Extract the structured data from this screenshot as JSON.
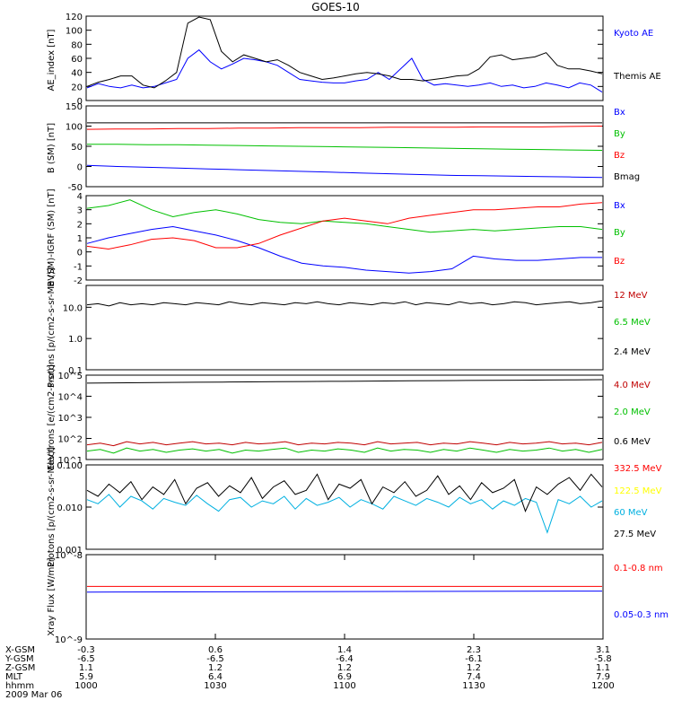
{
  "title": "GOES-10",
  "chart_data": [
    {
      "type": "line",
      "ylabel": "AE_index [nT]",
      "yticks": [
        "0",
        "20",
        "40",
        "60",
        "80",
        "100",
        "120"
      ],
      "ylim": [
        0,
        120
      ],
      "series": [
        {
          "name": "Kyoto AE",
          "color": "#0000ff",
          "values": [
            18,
            24,
            20,
            18,
            22,
            18,
            20,
            25,
            30,
            60,
            72,
            55,
            45,
            52,
            60,
            58,
            55,
            50,
            40,
            30,
            28,
            26,
            25,
            25,
            28,
            30,
            40,
            30,
            45,
            60,
            30,
            22,
            24,
            22,
            20,
            22,
            25,
            20,
            22,
            18,
            20,
            25,
            22,
            18,
            25,
            22,
            12
          ]
        },
        {
          "name": "Themis AE",
          "color": "#000000",
          "values": [
            20,
            26,
            30,
            35,
            35,
            22,
            18,
            28,
            40,
            110,
            120,
            115,
            70,
            55,
            65,
            60,
            55,
            58,
            50,
            40,
            35,
            30,
            32,
            35,
            38,
            40,
            38,
            35,
            30,
            30,
            28,
            30,
            32,
            35,
            36,
            45,
            62,
            65,
            58,
            60,
            62,
            68,
            50,
            45,
            45,
            42,
            38
          ]
        }
      ]
    },
    {
      "type": "line",
      "ylabel": "B (SM) [nT]",
      "yticks": [
        "-50",
        "0",
        "50",
        "100",
        "150"
      ],
      "ylim": [
        -50,
        150
      ],
      "series": [
        {
          "name": "Bx",
          "color": "#0000ff",
          "values": [
            3,
            0,
            -2,
            -4,
            -6,
            -8,
            -10,
            -12,
            -14,
            -16,
            -18,
            -20,
            -22,
            -23,
            -24,
            -25,
            -26,
            -27
          ]
        },
        {
          "name": "By",
          "color": "#00c000",
          "values": [
            55,
            55,
            54,
            54,
            53,
            52,
            51,
            50,
            49,
            48,
            47,
            46,
            45,
            44,
            43,
            42,
            41,
            40
          ]
        },
        {
          "name": "Bz",
          "color": "#ff0000",
          "values": [
            92,
            93,
            93,
            94,
            94,
            95,
            95,
            96,
            96,
            96,
            97,
            97,
            97,
            98,
            98,
            98,
            99,
            100
          ]
        },
        {
          "name": "Bmag",
          "color": "#000000",
          "values": [
            108,
            108,
            108,
            108,
            108,
            108,
            108,
            108,
            108,
            108,
            108,
            108,
            108,
            108,
            108,
            108,
            108,
            108
          ]
        }
      ]
    },
    {
      "type": "line",
      "ylabel": "B (SM)-IGRF (SM) [nT]",
      "yticks": [
        "-2",
        "-1",
        "0",
        "1",
        "2",
        "3",
        "4"
      ],
      "ylim": [
        -2,
        4
      ],
      "series": [
        {
          "name": "Bx",
          "color": "#0000ff",
          "values": [
            0.6,
            1.0,
            1.3,
            1.6,
            1.8,
            1.5,
            1.2,
            0.8,
            0.3,
            -0.3,
            -0.8,
            -1.0,
            -1.1,
            -1.3,
            -1.4,
            -1.5,
            -1.4,
            -1.2,
            -0.3,
            -0.5,
            -0.6,
            -0.6,
            -0.5,
            -0.4,
            -0.4
          ]
        },
        {
          "name": "By",
          "color": "#00c000",
          "values": [
            3.1,
            3.3,
            3.7,
            3.0,
            2.5,
            2.8,
            3.0,
            2.7,
            2.3,
            2.1,
            2.0,
            2.2,
            2.1,
            2.0,
            1.8,
            1.6,
            1.4,
            1.5,
            1.6,
            1.5,
            1.6,
            1.7,
            1.8,
            1.8,
            1.6
          ]
        },
        {
          "name": "Bz",
          "color": "#ff0000",
          "values": [
            0.4,
            0.2,
            0.5,
            0.9,
            1.0,
            0.8,
            0.3,
            0.3,
            0.6,
            1.2,
            1.7,
            2.2,
            2.4,
            2.2,
            2.0,
            2.4,
            2.6,
            2.8,
            3.0,
            3.0,
            3.1,
            3.2,
            3.2,
            3.4,
            3.5
          ]
        }
      ]
    },
    {
      "type": "line",
      "ylabel": "Protons [p/(cm2-s-sr-MeV)]",
      "yticks": [
        "0.1",
        "1.0",
        "10.0"
      ],
      "ylim": [
        0.1,
        50
      ],
      "yscale": "log",
      "series": [
        {
          "name": "12 MeV",
          "color": "#c00000",
          "values": []
        },
        {
          "name": "6.5 MeV",
          "color": "#00c000",
          "values": []
        },
        {
          "name": "2.4 MeV",
          "color": "#000000",
          "values": [
            12,
            13,
            11,
            14,
            12,
            13,
            12,
            14,
            13,
            12,
            14,
            13,
            12,
            15,
            13,
            12,
            14,
            13,
            12,
            14,
            13,
            15,
            13,
            12,
            14,
            13,
            12,
            14,
            13,
            15,
            12,
            14,
            13,
            12,
            15,
            13,
            14,
            12,
            13,
            15,
            14,
            12,
            13,
            14,
            15,
            13,
            14,
            16
          ]
        }
      ]
    },
    {
      "type": "line",
      "ylabel": "Electrons [e/(cm2-s-sr)]",
      "yticks": [
        "10^1",
        "10^2",
        "10^3",
        "10^4",
        "10^5"
      ],
      "ylim": [
        10,
        100000
      ],
      "yscale": "log",
      "series": [
        {
          "name": "4.0 MeV",
          "color": "#c00000",
          "values": [
            50,
            60,
            45,
            70,
            55,
            65,
            50,
            60,
            70,
            55,
            60,
            50,
            65,
            55,
            60,
            70,
            50,
            60,
            55,
            65,
            60,
            50,
            70,
            55,
            60,
            65,
            50,
            60,
            55,
            70,
            60,
            50,
            65,
            55,
            60,
            70,
            55,
            60,
            50,
            65
          ]
        },
        {
          "name": "2.0 MeV",
          "color": "#00c000",
          "values": [
            25,
            30,
            20,
            35,
            25,
            30,
            22,
            28,
            32,
            25,
            30,
            20,
            28,
            25,
            30,
            35,
            22,
            28,
            25,
            32,
            28,
            22,
            35,
            25,
            30,
            28,
            22,
            30,
            25,
            35,
            28,
            22,
            30,
            25,
            28,
            35,
            25,
            30,
            22,
            30
          ]
        },
        {
          "name": "0.6 MeV",
          "color": "#000000",
          "values": [
            42000,
            43000,
            44000,
            45000,
            46000,
            47000,
            48000,
            49000,
            50000,
            51000,
            52000,
            53000,
            54000,
            55000,
            56000,
            57000,
            58000,
            59000,
            60000,
            61000
          ]
        }
      ]
    },
    {
      "type": "line",
      "ylabel": "Protons [p/(cm2-s-sr-MeV)]",
      "yticks": [
        "0.001",
        "0.010",
        "0.100"
      ],
      "ylim": [
        0.001,
        0.1
      ],
      "yscale": "log",
      "series": [
        {
          "name": "332.5 MeV",
          "color": "#ff0000",
          "values": []
        },
        {
          "name": "122.5 MeV",
          "color": "#ffff00",
          "values": []
        },
        {
          "name": "60 MeV",
          "color": "#00b0e0",
          "values": [
            0.015,
            0.012,
            0.02,
            0.01,
            0.018,
            0.014,
            0.009,
            0.016,
            0.013,
            0.011,
            0.019,
            0.012,
            0.008,
            0.015,
            0.017,
            0.01,
            0.014,
            0.012,
            0.018,
            0.009,
            0.016,
            0.011,
            0.013,
            0.017,
            0.01,
            0.015,
            0.012,
            0.009,
            0.018,
            0.014,
            0.011,
            0.016,
            0.013,
            0.01,
            0.017,
            0.012,
            0.015,
            0.009,
            0.014,
            0.011,
            0.016,
            0.013,
            0.0025,
            0.015,
            0.012,
            0.018,
            0.01,
            0.014
          ]
        },
        {
          "name": "27.5 MeV",
          "color": "#000000",
          "values": [
            0.025,
            0.018,
            0.035,
            0.022,
            0.04,
            0.015,
            0.03,
            0.02,
            0.045,
            0.012,
            0.028,
            0.038,
            0.018,
            0.032,
            0.022,
            0.05,
            0.016,
            0.03,
            0.042,
            0.02,
            0.025,
            0.06,
            0.015,
            0.035,
            0.028,
            0.045,
            0.012,
            0.03,
            0.022,
            0.04,
            0.018,
            0.025,
            0.055,
            0.02,
            0.032,
            0.015,
            0.038,
            0.022,
            0.028,
            0.045,
            0.008,
            0.03,
            0.02,
            0.035,
            0.05,
            0.025,
            0.06,
            0.03
          ]
        }
      ]
    },
    {
      "type": "line",
      "ylabel": "Xray Flux [W/m2]",
      "yticks": [
        "10^-8",
        "10^-9"
      ],
      "ylim": [
        1e-09,
        1e-08
      ],
      "yscale": "log",
      "series": [
        {
          "name": "0.1-0.8 nm",
          "color": "#ff0000",
          "values": [
            4.2e-09,
            4.2e-09
          ]
        },
        {
          "name": "0.05-0.3 nm",
          "color": "#0000ff",
          "values": [
            3.6e-09,
            3.7e-09
          ]
        }
      ]
    }
  ],
  "xaxis": {
    "rows": [
      {
        "label": "X-GSM",
        "values": [
          "-0.3",
          "0.6",
          "1.4",
          "2.3",
          "3.1"
        ]
      },
      {
        "label": "Y-GSM",
        "values": [
          "-6.5",
          "-6.5",
          "-6.4",
          "-6.1",
          "-5.8"
        ]
      },
      {
        "label": "Z-GSM",
        "values": [
          "1.1",
          "1.2",
          "1.2",
          "1.2",
          "1.1"
        ]
      },
      {
        "label": "MLT",
        "values": [
          "5.9",
          "6.4",
          "6.9",
          "7.4",
          "7.9"
        ]
      },
      {
        "label": "hhmm",
        "values": [
          "1000",
          "1030",
          "1100",
          "1130",
          "1200"
        ]
      }
    ],
    "date": "2009 Mar 06"
  }
}
